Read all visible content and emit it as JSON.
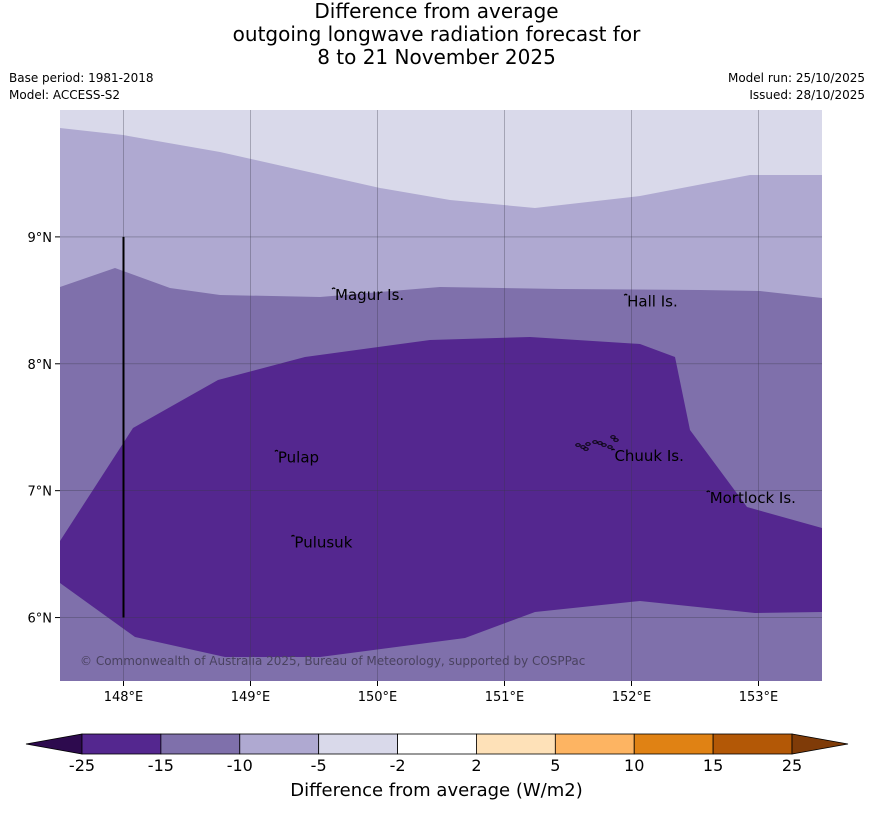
{
  "title": {
    "line1": "Difference from average",
    "line2": "outgoing longwave radiation forecast for",
    "line3": "8 to 21 November 2025"
  },
  "meta": {
    "base_period": "Base period: 1981-2018",
    "model": "Model: ACCESS-S2",
    "model_run": "Model run: 25/10/2025",
    "issued": "Issued: 28/10/2025"
  },
  "map": {
    "lon_range": [
      147.5,
      153.5
    ],
    "lat_range": [
      5.5,
      10.0
    ],
    "lon_ticks": [
      {
        "value": 148,
        "label": "148°E"
      },
      {
        "value": 149,
        "label": "149°E"
      },
      {
        "value": 150,
        "label": "150°E"
      },
      {
        "value": 151,
        "label": "151°E"
      },
      {
        "value": 152,
        "label": "152°E"
      },
      {
        "value": 153,
        "label": "153°E"
      }
    ],
    "lat_ticks": [
      {
        "value": 9,
        "label": "9°N"
      },
      {
        "value": 8,
        "label": "8°N"
      },
      {
        "value": 7,
        "label": "7°N"
      },
      {
        "value": 6,
        "label": "6°N"
      }
    ],
    "places": [
      {
        "name": "Magur Is.",
        "lon": 149.65,
        "lat": 8.55
      },
      {
        "name": "Hall Is.",
        "lon": 151.95,
        "lat": 8.5
      },
      {
        "name": "Pulap",
        "lon": 149.2,
        "lat": 7.27
      },
      {
        "name": "Chuuk Is.",
        "lon": 151.85,
        "lat": 7.28
      },
      {
        "name": "Mortlock Is.",
        "lon": 152.6,
        "lat": 6.95
      },
      {
        "name": "Pulusuk",
        "lon": 149.33,
        "lat": 6.6
      }
    ],
    "meridian_line_lon": 148.0,
    "copyright": "© Commonwealth of Australia 2025, Bureau of Meteorology, supported by COSPPac"
  },
  "colorbar": {
    "ticks": [
      "-25",
      "-15",
      "-10",
      "-5",
      "-2",
      "2",
      "5",
      "10",
      "15",
      "25"
    ],
    "colors": [
      "#2d0a4e",
      "#54278f",
      "#7f70ab",
      "#afa9d1",
      "#d9d9ea",
      "#ffffff",
      "#fee1b8",
      "#fdb462",
      "#e08214",
      "#b35806",
      "#7f3b08"
    ],
    "label": "Difference from average (W/m2)"
  },
  "band_colors": {
    "minus_2_to_minus_5": "#d9d9ea",
    "minus_5_to_minus_10": "#afa9d1",
    "minus_10_to_minus_15": "#7f70ab",
    "minus_15_to_minus_25": "#54278f"
  }
}
